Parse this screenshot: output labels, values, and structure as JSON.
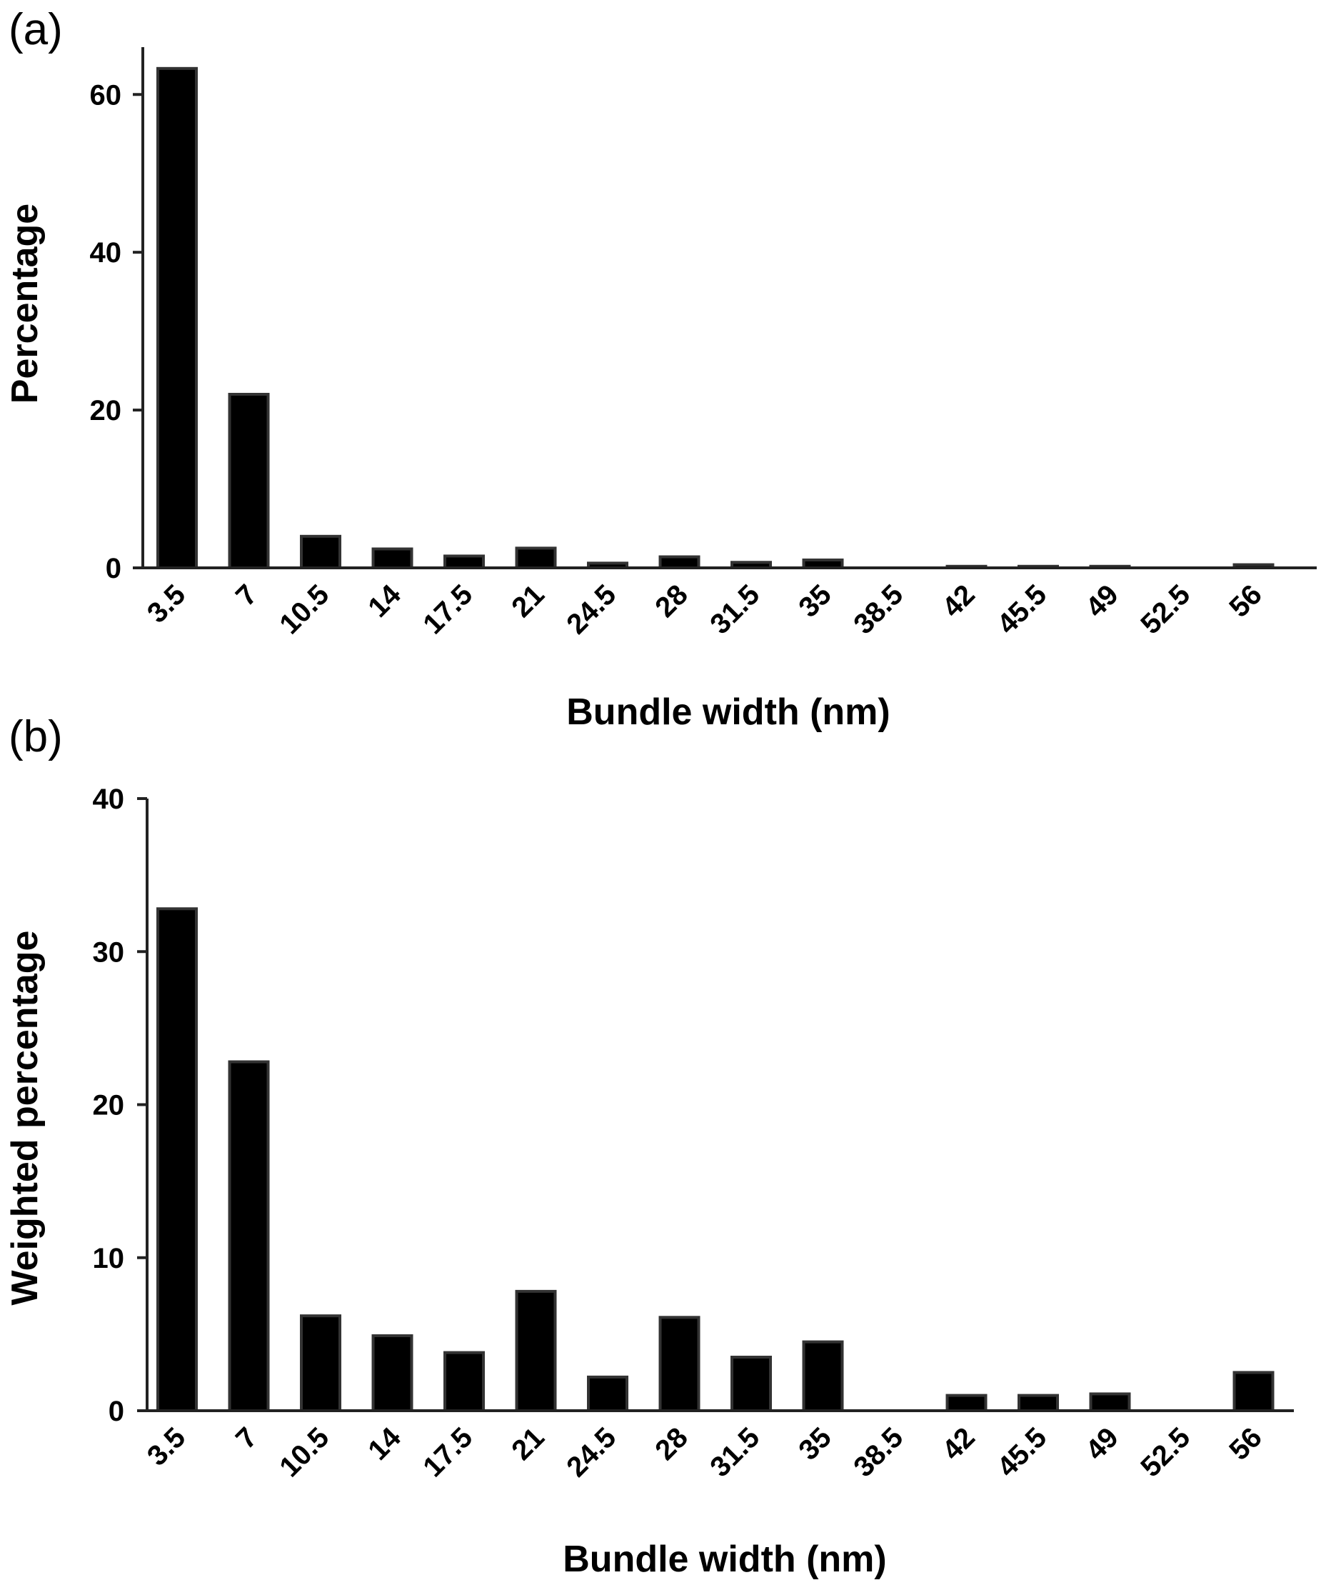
{
  "chart_data": [
    {
      "type": "bar",
      "panel_label": "(a)",
      "categories": [
        "3.5",
        "7",
        "10.5",
        "14",
        "17.5",
        "21",
        "24.5",
        "28",
        "31.5",
        "35",
        "38.5",
        "42",
        "45.5",
        "49",
        "52.5",
        "56"
      ],
      "values": [
        63.3,
        22,
        4,
        2.4,
        1.5,
        2.5,
        0.6,
        1.4,
        0.7,
        1.0,
        0,
        0.2,
        0.2,
        0.2,
        0,
        0.4
      ],
      "xlabel": "Bundle width (nm)",
      "ylabel": "Percentage",
      "ylim": [
        0,
        66
      ],
      "yticks": [
        0,
        20,
        40,
        60
      ],
      "grid": false,
      "bar_color": "#000000",
      "bar_edge_color": "#333333"
    },
    {
      "type": "bar",
      "panel_label": "(b)",
      "categories": [
        "3.5",
        "7",
        "10.5",
        "14",
        "17.5",
        "21",
        "24.5",
        "28",
        "31.5",
        "35",
        "38.5",
        "42",
        "45.5",
        "49",
        "52.5",
        "56"
      ],
      "values": [
        32.8,
        22.8,
        6.2,
        4.9,
        3.8,
        7.8,
        2.2,
        6.1,
        3.5,
        4.5,
        0,
        1.0,
        1.0,
        1.1,
        0,
        2.5
      ],
      "xlabel": "Bundle width (nm)",
      "ylabel": "Weighted percentage",
      "ylim": [
        0,
        40
      ],
      "yticks": [
        0,
        10,
        20,
        30,
        40
      ],
      "grid": false,
      "bar_color": "#000000",
      "bar_edge_color": "#333333"
    }
  ]
}
